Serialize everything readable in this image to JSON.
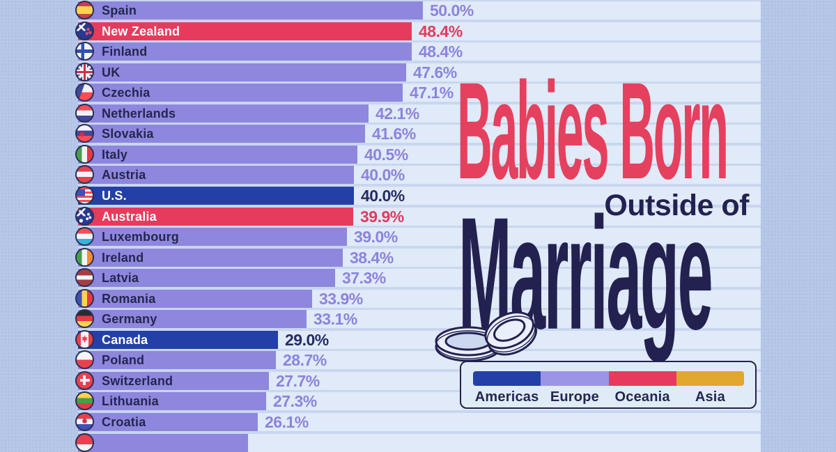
{
  "title": {
    "line1": "Babies Born",
    "line2": "Outside of",
    "line3": "Marriage"
  },
  "legend": {
    "items": [
      {
        "label": "Americas",
        "color": "#2340a8"
      },
      {
        "label": "Europe",
        "color": "#9c95e6"
      },
      {
        "label": "Oceania",
        "color": "#e73b5d"
      },
      {
        "label": "Asia",
        "color": "#e2a72e"
      }
    ]
  },
  "colors": {
    "outer_background": "#b6c7e8",
    "panel_background": "#c9d6ef",
    "row_track": "#e0eaf8",
    "europe_bar": "#8e87dd",
    "americas_bar": "#2340a8",
    "oceania_bar": "#e73b5d",
    "asia": "#e2a72e",
    "title_red": "#e5405e",
    "title_navy": "#232150"
  },
  "chart_data": {
    "type": "bar",
    "orientation": "horizontal",
    "title": "Babies Born Outside of Marriage",
    "unit": "%",
    "value_range": [
      0,
      50
    ],
    "legend_position": "bottom-right",
    "rows": [
      {
        "country": "Spain",
        "value": 50.0,
        "label": "50.0%",
        "continent": "Europe",
        "flag": "spain"
      },
      {
        "country": "New Zealand",
        "value": 48.4,
        "label": "48.4%",
        "continent": "Oceania",
        "flag": "nz"
      },
      {
        "country": "Finland",
        "value": 48.4,
        "label": "48.4%",
        "continent": "Europe",
        "flag": "finland"
      },
      {
        "country": "UK",
        "value": 47.6,
        "label": "47.6%",
        "continent": "Europe",
        "flag": "uk"
      },
      {
        "country": "Czechia",
        "value": 47.1,
        "label": "47.1%",
        "continent": "Europe",
        "flag": "czechia"
      },
      {
        "country": "Netherlands",
        "value": 42.1,
        "label": "42.1%",
        "continent": "Europe",
        "flag": "netherlands"
      },
      {
        "country": "Slovakia",
        "value": 41.6,
        "label": "41.6%",
        "continent": "Europe",
        "flag": "slovakia"
      },
      {
        "country": "Italy",
        "value": 40.5,
        "label": "40.5%",
        "continent": "Europe",
        "flag": "italy"
      },
      {
        "country": "Austria",
        "value": 40.0,
        "label": "40.0%",
        "continent": "Europe",
        "flag": "austria"
      },
      {
        "country": "U.S.",
        "value": 40.0,
        "label": "40.0%",
        "continent": "Americas",
        "flag": "us"
      },
      {
        "country": "Australia",
        "value": 39.9,
        "label": "39.9%",
        "continent": "Oceania",
        "flag": "australia"
      },
      {
        "country": "Luxembourg",
        "value": 39.0,
        "label": "39.0%",
        "continent": "Europe",
        "flag": "luxembourg"
      },
      {
        "country": "Ireland",
        "value": 38.4,
        "label": "38.4%",
        "continent": "Europe",
        "flag": "ireland"
      },
      {
        "country": "Latvia",
        "value": 37.3,
        "label": "37.3%",
        "continent": "Europe",
        "flag": "latvia"
      },
      {
        "country": "Romania",
        "value": 33.9,
        "label": "33.9%",
        "continent": "Europe",
        "flag": "romania"
      },
      {
        "country": "Germany",
        "value": 33.1,
        "label": "33.1%",
        "continent": "Europe",
        "flag": "germany"
      },
      {
        "country": "Canada",
        "value": 29.0,
        "label": "29.0%",
        "continent": "Americas",
        "flag": "canada"
      },
      {
        "country": "Poland",
        "value": 28.7,
        "label": "28.7%",
        "continent": "Europe",
        "flag": "poland"
      },
      {
        "country": "Switzerland",
        "value": 27.7,
        "label": "27.7%",
        "continent": "Europe",
        "flag": "switzerland"
      },
      {
        "country": "Lithuania",
        "value": 27.3,
        "label": "27.3%",
        "continent": "Europe",
        "flag": "lithuania"
      },
      {
        "country": "Croatia",
        "value": 26.1,
        "label": "26.1%",
        "continent": "Europe",
        "flag": "croatia"
      },
      {
        "country": "",
        "value": 24.6,
        "label": "",
        "continent": "Europe",
        "flag": "partial",
        "partial": true
      }
    ]
  }
}
